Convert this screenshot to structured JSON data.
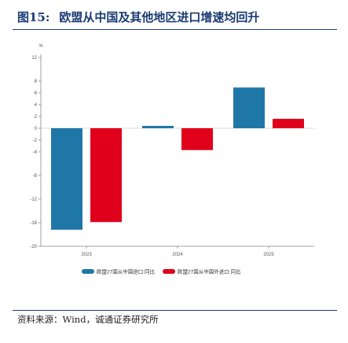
{
  "figure": {
    "number": "图15:",
    "title": "欧盟从中国及其他地区进口增速均回升",
    "source": "资料来源：Wind，诚通证券研究所"
  },
  "chart_data": {
    "type": "bar",
    "unit": "%",
    "categories": [
      "2023",
      "2024",
      "2025"
    ],
    "series": [
      {
        "name": "欧盟27国从中国进口:同比",
        "color": "#1f77a8",
        "values": [
          -17.2,
          0.4,
          6.9
        ]
      },
      {
        "name": "欧盟27国从中国外进口:同比",
        "color": "#e0001b",
        "values": [
          -15.9,
          -3.7,
          1.6
        ]
      }
    ],
    "ylim": [
      -20,
      12
    ],
    "yticks": [
      12,
      8,
      6,
      4,
      2,
      0,
      -2,
      -4,
      -8,
      -12,
      -16,
      -20
    ],
    "grid": false,
    "legend_position": "bottom"
  }
}
